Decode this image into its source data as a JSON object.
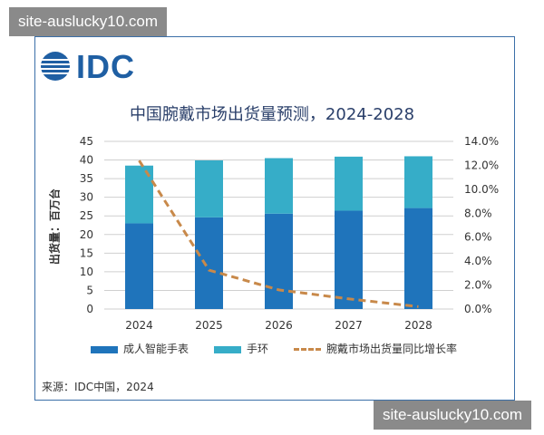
{
  "watermark_top": "site-auslucky10.com",
  "watermark_bottom": "site-auslucky10.com",
  "logo": "IDC",
  "source": "来源：IDC中国，2024",
  "chart_data": {
    "type": "bar",
    "stacked": true,
    "title": "中国腕戴市场出货量预测，2024-2028",
    "ylabel": "出货量：百万台",
    "categories": [
      "2024",
      "2025",
      "2026",
      "2027",
      "2028"
    ],
    "ylim": [
      0,
      45
    ],
    "yticks": [
      0,
      5,
      10,
      15,
      20,
      25,
      30,
      35,
      40,
      45
    ],
    "y2lim": [
      0,
      14
    ],
    "y2ticks": [
      "0.0%",
      "2.0%",
      "4.0%",
      "6.0%",
      "8.0%",
      "10.0%",
      "12.0%",
      "14.0%"
    ],
    "grid": true,
    "legend_placement": "bottom",
    "series": [
      {
        "name": "成人智能手表",
        "type": "bar",
        "color": "#1f74bb",
        "values": [
          23.0,
          24.6,
          25.6,
          26.4,
          27.1
        ]
      },
      {
        "name": "手环",
        "type": "bar",
        "color": "#36adc8",
        "values": [
          15.5,
          15.3,
          14.9,
          14.5,
          13.9
        ]
      },
      {
        "name": "腕戴市场出货量同比增长率",
        "type": "line",
        "axis": "right",
        "color": "#c8894a",
        "values": [
          12.4,
          3.25,
          1.6,
          0.85,
          0.2
        ]
      }
    ]
  }
}
